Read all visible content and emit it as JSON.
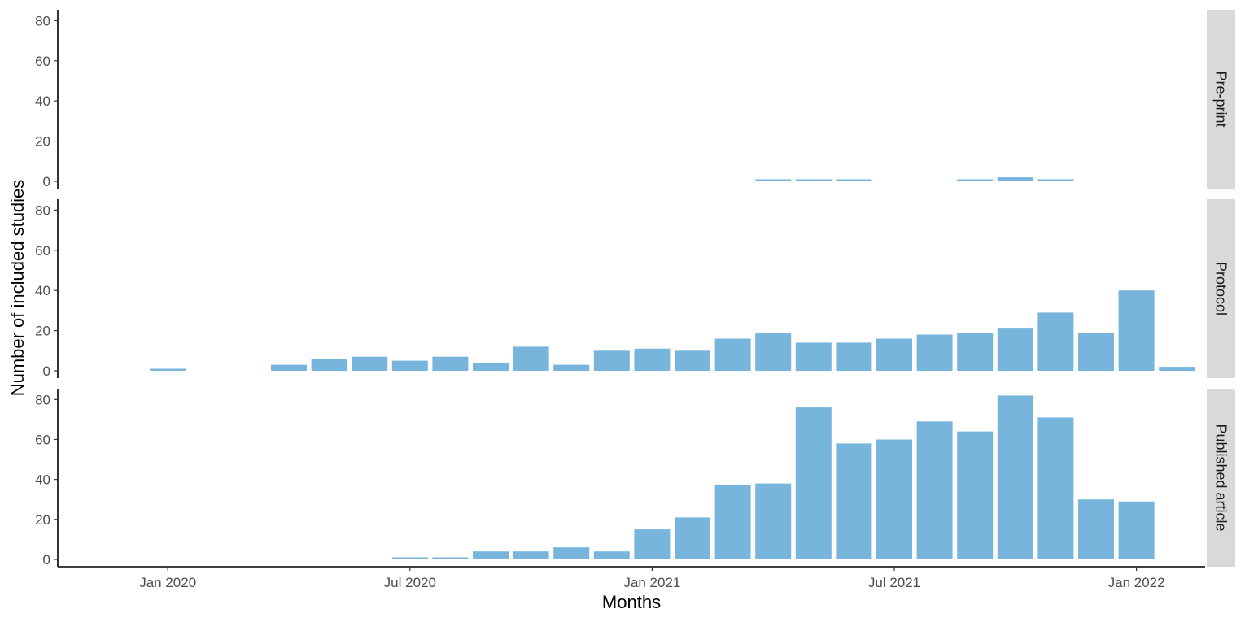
{
  "chart_data": {
    "type": "bar",
    "xlabel": "Months",
    "ylabel": "Number of included studies",
    "ylim": [
      0,
      85
    ],
    "y_ticks": [
      0,
      20,
      40,
      60,
      80
    ],
    "x_ticks": [
      {
        "date": "2020-01",
        "label": "Jan 2020"
      },
      {
        "date": "2020-07",
        "label": "Jul 2020"
      },
      {
        "date": "2021-01",
        "label": "Jan 2021"
      },
      {
        "date": "2021-07",
        "label": "Jul 2021"
      },
      {
        "date": "2022-01",
        "label": "Jan 2022"
      }
    ],
    "x_range": [
      "2019-11",
      "2022-04"
    ],
    "bar_color": "#77b5dd",
    "strip_color": "#d9d9d9",
    "grid": false,
    "facets": [
      {
        "name": "Pre-print",
        "points": [
          {
            "month": "2021-04",
            "value": 1
          },
          {
            "month": "2021-05",
            "value": 1
          },
          {
            "month": "2021-06",
            "value": 1
          },
          {
            "month": "2021-09",
            "value": 1
          },
          {
            "month": "2021-10",
            "value": 2
          },
          {
            "month": "2021-11",
            "value": 1
          }
        ]
      },
      {
        "name": "Protocol",
        "points": [
          {
            "month": "2020-01",
            "value": 1
          },
          {
            "month": "2020-04",
            "value": 3
          },
          {
            "month": "2020-05",
            "value": 6
          },
          {
            "month": "2020-06",
            "value": 7
          },
          {
            "month": "2020-07",
            "value": 5
          },
          {
            "month": "2020-08",
            "value": 7
          },
          {
            "month": "2020-09",
            "value": 4
          },
          {
            "month": "2020-10",
            "value": 12
          },
          {
            "month": "2020-11",
            "value": 3
          },
          {
            "month": "2020-12",
            "value": 10
          },
          {
            "month": "2021-01",
            "value": 11
          },
          {
            "month": "2021-02",
            "value": 10
          },
          {
            "month": "2021-03",
            "value": 16
          },
          {
            "month": "2021-04",
            "value": 19
          },
          {
            "month": "2021-05",
            "value": 14
          },
          {
            "month": "2021-06",
            "value": 14
          },
          {
            "month": "2021-07",
            "value": 16
          },
          {
            "month": "2021-08",
            "value": 18
          },
          {
            "month": "2021-09",
            "value": 19
          },
          {
            "month": "2021-10",
            "value": 21
          },
          {
            "month": "2021-11",
            "value": 29
          },
          {
            "month": "2021-12",
            "value": 19
          },
          {
            "month": "2022-01",
            "value": 40
          },
          {
            "month": "2022-02",
            "value": 2
          }
        ]
      },
      {
        "name": "Published article",
        "points": [
          {
            "month": "2020-07",
            "value": 1
          },
          {
            "month": "2020-08",
            "value": 1
          },
          {
            "month": "2020-09",
            "value": 4
          },
          {
            "month": "2020-10",
            "value": 4
          },
          {
            "month": "2020-11",
            "value": 6
          },
          {
            "month": "2020-12",
            "value": 4
          },
          {
            "month": "2021-01",
            "value": 15
          },
          {
            "month": "2021-02",
            "value": 21
          },
          {
            "month": "2021-03",
            "value": 37
          },
          {
            "month": "2021-04",
            "value": 38
          },
          {
            "month": "2021-05",
            "value": 76
          },
          {
            "month": "2021-06",
            "value": 58
          },
          {
            "month": "2021-07",
            "value": 60
          },
          {
            "month": "2021-08",
            "value": 69
          },
          {
            "month": "2021-09",
            "value": 64
          },
          {
            "month": "2021-10",
            "value": 82
          },
          {
            "month": "2021-11",
            "value": 71
          },
          {
            "month": "2021-12",
            "value": 30
          },
          {
            "month": "2022-01",
            "value": 29
          }
        ]
      }
    ]
  }
}
